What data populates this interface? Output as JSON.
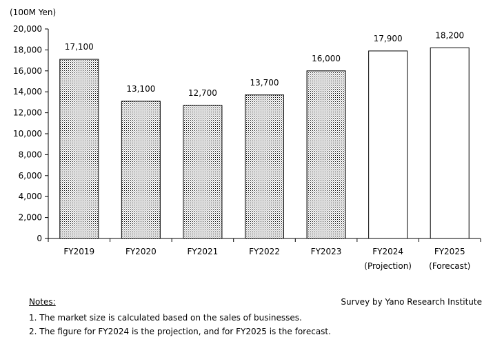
{
  "chart_data": {
    "type": "bar",
    "unit_label": "(100M Yen)",
    "categories": [
      [
        "FY2019"
      ],
      [
        "FY2020"
      ],
      [
        "FY2021"
      ],
      [
        "FY2022"
      ],
      [
        "FY2023"
      ],
      [
        "FY2024",
        "(Projection)"
      ],
      [
        "FY2025",
        "(Forecast)"
      ]
    ],
    "values": [
      17100,
      13100,
      12700,
      13700,
      16000,
      17900,
      18200
    ],
    "value_labels": [
      "17,100",
      "13,100",
      "12,700",
      "13,700",
      "16,000",
      "17,900",
      "18,200"
    ],
    "bar_styles": [
      "dotted",
      "dotted",
      "dotted",
      "dotted",
      "dotted",
      "white",
      "white"
    ],
    "ylim": [
      0,
      20000
    ],
    "yticks": [
      0,
      2000,
      4000,
      6000,
      8000,
      10000,
      12000,
      14000,
      16000,
      18000,
      20000
    ],
    "ytick_labels": [
      "0",
      "2,000",
      "4,000",
      "6,000",
      "8,000",
      "10,000",
      "12,000",
      "14,000",
      "16,000",
      "18,000",
      "20,000"
    ],
    "grid": false,
    "legend": "none"
  },
  "notes": {
    "title": "Notes:",
    "items": [
      "1.  The market size is calculated based on the sales of businesses.",
      "2.  The figure for FY2024 is the projection, and for FY2025 is the forecast."
    ]
  },
  "source": "Survey by Yano Research Institute"
}
